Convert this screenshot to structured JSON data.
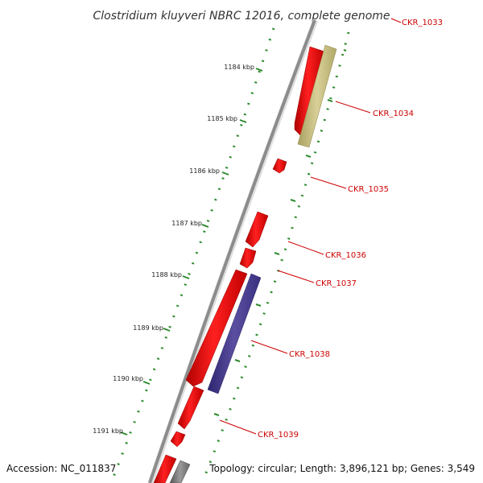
{
  "title": "Clostridium kluyveri NBRC 12016, complete genome",
  "footer": {
    "accession": "Accession: NC_011837",
    "topology": "Topology: circular; Length: 3,896,121 bp; Genes: 3,549"
  },
  "colors": {
    "backbone": "#8c8c8c",
    "tick_ring": "#2e8b2e",
    "gene_forward": "#e00000",
    "gene_reverse_khaki": "#c8c080",
    "gene_reverse_purple": "#4a3f8c",
    "gene_gray": "#808080",
    "label": "#cc0000"
  },
  "map_scale": {
    "labels": [
      "1184 kbp",
      "1185 kbp",
      "1186 kbp",
      "1187 kbp",
      "1188 kbp",
      "1189 kbp",
      "1190 kbp",
      "1191 kbp"
    ]
  },
  "gene_labels": [
    "CKR_1033",
    "CKR_1034",
    "CKR_1035",
    "CKR_1036",
    "CKR_1037",
    "CKR_1038",
    "CKR_1039"
  ]
}
